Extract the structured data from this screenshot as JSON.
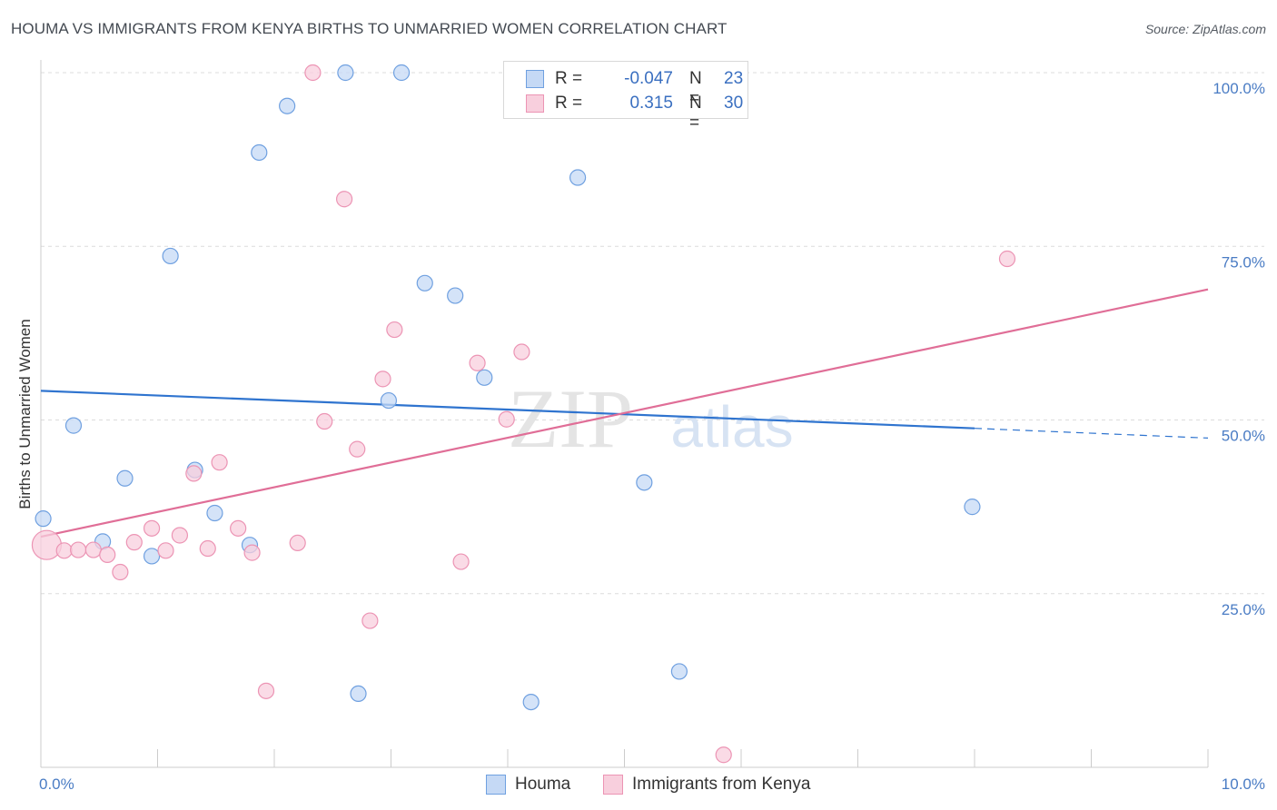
{
  "title": "HOUMA VS IMMIGRANTS FROM KENYA BIRTHS TO UNMARRIED WOMEN CORRELATION CHART",
  "source": "Source: ZipAtlas.com",
  "watermark": {
    "zip": "ZIP",
    "atlas": "atlas"
  },
  "legend_top": {
    "rows": [
      {
        "r_label": "R =",
        "r_value": "-0.047",
        "n_label": "N =",
        "n_value": "23"
      },
      {
        "r_label": "R =",
        "r_value": "0.315",
        "n_label": "N =",
        "n_value": "30"
      }
    ]
  },
  "chart_data": {
    "type": "scatter",
    "title": "HOUMA VS IMMIGRANTS FROM KENYA BIRTHS TO UNMARRIED WOMEN CORRELATION CHART",
    "xlabel": "",
    "ylabel": "Births to Unmarried Women",
    "xlim": [
      0,
      10
    ],
    "ylim": [
      0,
      100
    ],
    "x_tick_labels": [
      "0.0%",
      "10.0%"
    ],
    "y_tick_labels": [
      "25.0%",
      "50.0%",
      "75.0%",
      "100.0%"
    ],
    "y_ticks": [
      25,
      50,
      75,
      100
    ],
    "grid": true,
    "legend_position": "bottom-center",
    "series": [
      {
        "name": "Houma",
        "color": "#6fa0e0",
        "fill": "#c5d9f5",
        "trend_color": "#2f74cf",
        "r": -0.047,
        "n": 23,
        "trend": {
          "x0": 0.0,
          "y0": 54.2,
          "x1": 8.0,
          "y1": 48.8,
          "dash_x1": 10.0,
          "dash_y1": 47.4
        },
        "points": [
          [
            0.02,
            35.8
          ],
          [
            0.28,
            49.2
          ],
          [
            0.53,
            32.5
          ],
          [
            0.72,
            41.6
          ],
          [
            0.95,
            30.4
          ],
          [
            1.11,
            73.6
          ],
          [
            1.32,
            42.8
          ],
          [
            1.49,
            36.6
          ],
          [
            1.79,
            32.0
          ],
          [
            1.87,
            88.5
          ],
          [
            2.11,
            95.2
          ],
          [
            2.61,
            100.0
          ],
          [
            2.72,
            10.6
          ],
          [
            2.98,
            52.8
          ],
          [
            3.09,
            100.0
          ],
          [
            3.29,
            69.7
          ],
          [
            3.55,
            67.9
          ],
          [
            3.8,
            56.1
          ],
          [
            4.2,
            9.4
          ],
          [
            4.6,
            84.9
          ],
          [
            5.17,
            41.0
          ],
          [
            5.47,
            13.8
          ],
          [
            7.98,
            37.5
          ]
        ]
      },
      {
        "name": "Immigrants from Kenya",
        "color": "#ec94b4",
        "fill": "#f8cfdd",
        "trend_color": "#e06e97",
        "r": 0.315,
        "n": 30,
        "trend": {
          "x0": 0.0,
          "y0": 33.2,
          "x1": 10.0,
          "y1": 68.8
        },
        "points": [
          [
            0.05,
            32.0
          ],
          [
            0.2,
            31.2
          ],
          [
            0.32,
            31.3
          ],
          [
            0.45,
            31.3
          ],
          [
            0.57,
            30.6
          ],
          [
            0.68,
            28.1
          ],
          [
            0.8,
            32.4
          ],
          [
            0.95,
            34.4
          ],
          [
            1.07,
            31.2
          ],
          [
            1.19,
            33.4
          ],
          [
            1.31,
            42.3
          ],
          [
            1.43,
            31.5
          ],
          [
            1.53,
            43.9
          ],
          [
            1.69,
            34.4
          ],
          [
            1.81,
            30.9
          ],
          [
            1.93,
            11.0
          ],
          [
            2.2,
            32.3
          ],
          [
            2.33,
            100.0
          ],
          [
            2.43,
            49.8
          ],
          [
            2.6,
            81.8
          ],
          [
            2.71,
            45.8
          ],
          [
            2.82,
            21.1
          ],
          [
            2.93,
            55.9
          ],
          [
            3.03,
            63.0
          ],
          [
            3.6,
            29.6
          ],
          [
            3.74,
            58.2
          ],
          [
            3.99,
            50.1
          ],
          [
            4.12,
            59.8
          ],
          [
            5.85,
            1.8
          ],
          [
            8.28,
            73.2
          ]
        ]
      }
    ]
  }
}
